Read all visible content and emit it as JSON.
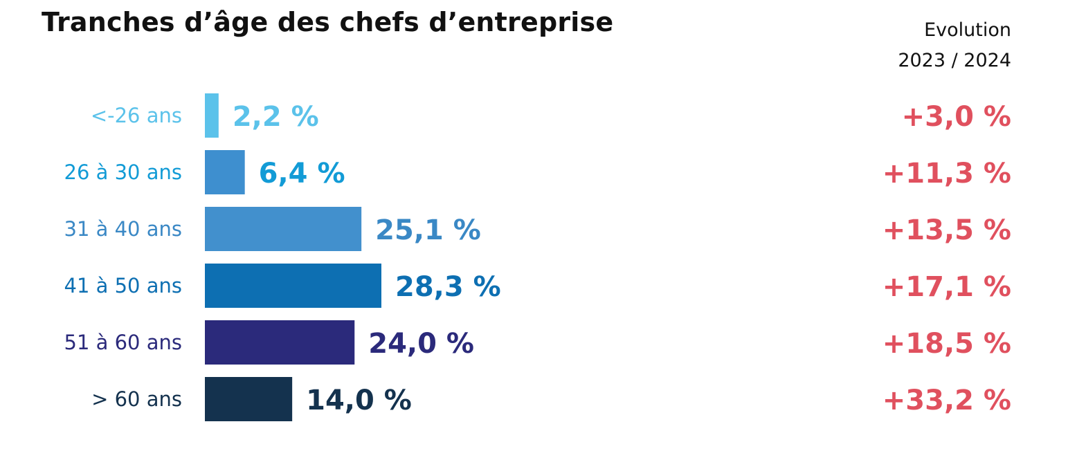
{
  "chart_data": {
    "type": "bar",
    "orientation": "horizontal",
    "title": "Tranches d’âge des chefs d’entreprise",
    "evolution_header": [
      "Evolution",
      "2023 / 2024"
    ],
    "categories": [
      "<-26 ans",
      "26 à 30 ans",
      "31 à 40 ans",
      "41 à 50 ans",
      "51 à 60 ans",
      "> 60 ans"
    ],
    "values": [
      2.2,
      6.4,
      25.1,
      28.3,
      24.0,
      14.0
    ],
    "value_labels": [
      "2,2 %",
      "6,4 %",
      "25,1 %",
      "28,3 %",
      "24,0 %",
      "14,0 %"
    ],
    "evolution_labels": [
      "+3,0 %",
      "+11,3 %",
      "+13,5 %",
      "+17,1 %",
      "+18,5 %",
      "+33,2 %"
    ],
    "bar_colors": [
      "#5bc2ea",
      "#3e8fcf",
      "#4290cd",
      "#0d6fb2",
      "#2b2a7b",
      "#14324e"
    ],
    "label_colors": [
      "#5bc2ea",
      "#129bd6",
      "#3a88c5",
      "#0d6fb2",
      "#2b2a7b",
      "#14324e"
    ],
    "evolution_color": "#e0505e",
    "grid": false,
    "legend": "none",
    "xlim": [
      0,
      28.3
    ]
  }
}
